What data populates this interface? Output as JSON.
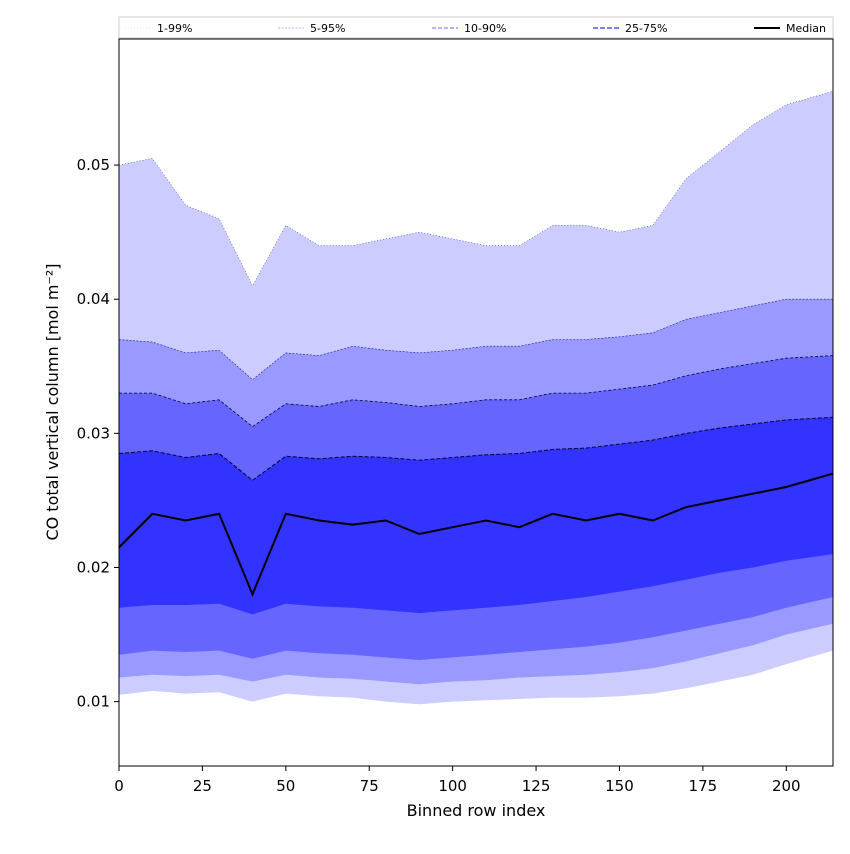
{
  "chart_data": {
    "type": "area",
    "xlabel": "Binned row index",
    "ylabel": "CO total vertical column [mol m⁻²]",
    "xlim": [
      0,
      214
    ],
    "ylim": [
      0.0052,
      0.0594
    ],
    "xticks": [
      0,
      25,
      50,
      75,
      100,
      125,
      150,
      175,
      200
    ],
    "yticks": [
      0.01,
      0.02,
      0.03,
      0.04,
      0.05
    ],
    "xtick_labels": [
      "0",
      "25",
      "50",
      "75",
      "100",
      "125",
      "150",
      "175",
      "200"
    ],
    "ytick_labels": [
      "0.01",
      "0.02",
      "0.03",
      "0.04",
      "0.05"
    ],
    "legend_position": "top",
    "legend": [
      {
        "label": "1-99%",
        "style": "dotted-thin",
        "color": "#ccccff"
      },
      {
        "label": "5-95%",
        "style": "dashed-fine",
        "color": "#9999ff"
      },
      {
        "label": "10-90%",
        "style": "dashed",
        "color": "#6666ff"
      },
      {
        "label": "25-75%",
        "style": "dashed-bold",
        "color": "#3333ff"
      },
      {
        "label": "Median",
        "style": "solid",
        "color": "#000000"
      }
    ],
    "x": [
      0,
      10,
      20,
      30,
      40,
      50,
      60,
      70,
      80,
      90,
      100,
      110,
      120,
      130,
      140,
      150,
      160,
      170,
      180,
      190,
      200,
      214
    ],
    "series": [
      {
        "name": "1-99%",
        "fill": "#ccccff",
        "lower": [
          0.0105,
          0.0108,
          0.0106,
          0.0107,
          0.01,
          0.0106,
          0.0104,
          0.0103,
          0.01,
          0.0098,
          0.01,
          0.0101,
          0.0102,
          0.0103,
          0.0103,
          0.0104,
          0.0106,
          0.011,
          0.0115,
          0.012,
          0.0128,
          0.0138
        ],
        "upper": [
          0.05,
          0.0505,
          0.047,
          0.046,
          0.041,
          0.0455,
          0.044,
          0.044,
          0.0445,
          0.045,
          0.0445,
          0.044,
          0.044,
          0.0455,
          0.0455,
          0.045,
          0.0455,
          0.049,
          0.051,
          0.053,
          0.0545,
          0.0555
        ]
      },
      {
        "name": "5-95%",
        "fill": "#9999ff",
        "lower": [
          0.0118,
          0.012,
          0.0119,
          0.012,
          0.0115,
          0.012,
          0.0118,
          0.0117,
          0.0115,
          0.0113,
          0.0115,
          0.0116,
          0.0118,
          0.0119,
          0.012,
          0.0122,
          0.0125,
          0.013,
          0.0136,
          0.0142,
          0.015,
          0.0158
        ],
        "upper": [
          0.037,
          0.0368,
          0.036,
          0.0362,
          0.034,
          0.036,
          0.0358,
          0.0365,
          0.0362,
          0.036,
          0.0362,
          0.0365,
          0.0365,
          0.037,
          0.037,
          0.0372,
          0.0375,
          0.0385,
          0.039,
          0.0395,
          0.04,
          0.04
        ]
      },
      {
        "name": "10-90%",
        "fill": "#6666ff",
        "lower": [
          0.0135,
          0.0138,
          0.0137,
          0.0138,
          0.0132,
          0.0138,
          0.0136,
          0.0135,
          0.0133,
          0.0131,
          0.0133,
          0.0135,
          0.0137,
          0.0139,
          0.0141,
          0.0144,
          0.0148,
          0.0153,
          0.0158,
          0.0163,
          0.017,
          0.0178
        ],
        "upper": [
          0.033,
          0.033,
          0.0322,
          0.0325,
          0.0305,
          0.0322,
          0.032,
          0.0325,
          0.0323,
          0.032,
          0.0322,
          0.0325,
          0.0325,
          0.033,
          0.033,
          0.0333,
          0.0336,
          0.0343,
          0.0348,
          0.0352,
          0.0356,
          0.0358
        ]
      },
      {
        "name": "25-75%",
        "fill": "#3333ff",
        "lower": [
          0.017,
          0.0172,
          0.0172,
          0.0173,
          0.0165,
          0.0173,
          0.0171,
          0.017,
          0.0168,
          0.0166,
          0.0168,
          0.017,
          0.0172,
          0.0175,
          0.0178,
          0.0182,
          0.0186,
          0.0191,
          0.0196,
          0.02,
          0.0205,
          0.021
        ],
        "upper": [
          0.0285,
          0.0287,
          0.0282,
          0.0285,
          0.0265,
          0.0283,
          0.0281,
          0.0283,
          0.0282,
          0.028,
          0.0282,
          0.0284,
          0.0285,
          0.0288,
          0.0289,
          0.0292,
          0.0295,
          0.03,
          0.0304,
          0.0307,
          0.031,
          0.0312
        ]
      }
    ],
    "median": {
      "name": "Median",
      "color": "#000000",
      "values": [
        0.0215,
        0.024,
        0.0235,
        0.024,
        0.018,
        0.024,
        0.0235,
        0.0232,
        0.0235,
        0.0225,
        0.023,
        0.0235,
        0.023,
        0.024,
        0.0235,
        0.024,
        0.0235,
        0.0245,
        0.025,
        0.0255,
        0.026,
        0.027
      ]
    }
  }
}
